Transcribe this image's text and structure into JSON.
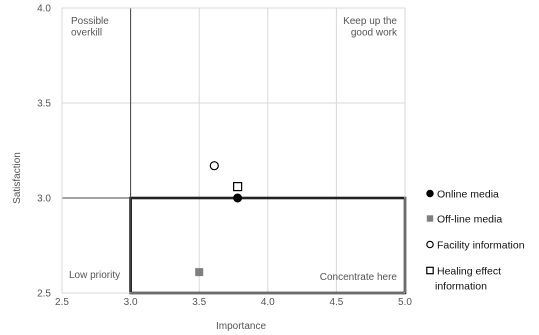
{
  "chart_data": {
    "type": "scatter",
    "xlabel": "Importance",
    "ylabel": "Satisfaction",
    "xlim": [
      2.5,
      5.0
    ],
    "ylim": [
      2.5,
      4.0
    ],
    "x_ticks": [
      "2.5",
      "3.0",
      "3.5",
      "4.0",
      "4.5",
      "5.0"
    ],
    "y_ticks": [
      "2.5",
      "3.0",
      "3.5",
      "4.0"
    ],
    "grid": true,
    "legend_position": "right",
    "quadrant_lines": {
      "x": 3.0,
      "y": 3.0
    },
    "highlight_region": {
      "x": [
        3.0,
        5.0
      ],
      "y": [
        2.5,
        3.0
      ]
    },
    "quadrant_labels": {
      "top_left": [
        "Possible",
        "overkill"
      ],
      "top_right": [
        "Keep up the",
        "good work"
      ],
      "bottom_left": [
        "Low priority"
      ],
      "bottom_right": [
        "Concentrate here"
      ]
    },
    "series": [
      {
        "name": "Online media",
        "legend_lines": [
          "Online media"
        ],
        "marker": "filled-circle",
        "color": "#000000",
        "x": 3.78,
        "y": 3.0
      },
      {
        "name": "Off-line media",
        "legend_lines": [
          "Off-line media"
        ],
        "marker": "filled-square",
        "color": "#7f7f7f",
        "x": 3.5,
        "y": 2.61
      },
      {
        "name": "Facility information",
        "legend_lines": [
          "Facility information"
        ],
        "marker": "open-circle",
        "color": "#000000",
        "x": 3.61,
        "y": 3.17
      },
      {
        "name": "Healing effect information",
        "legend_lines": [
          "Healing effect",
          "information"
        ],
        "marker": "open-square",
        "color": "#000000",
        "x": 3.78,
        "y": 3.06
      }
    ]
  }
}
